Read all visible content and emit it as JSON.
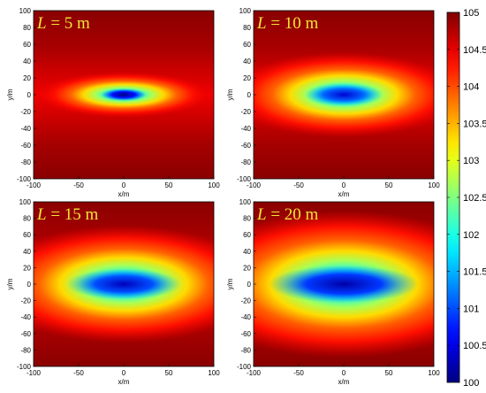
{
  "chart_data": {
    "type": "heatmap",
    "panels": [
      {
        "title_var": "L",
        "title_value": "= 5 m",
        "xlabel": "x/m",
        "ylabel": "y/m",
        "min_value": 100.3,
        "halo_rx": 100,
        "halo_ry": 26,
        "core_rx": 26,
        "core_ry": 7
      },
      {
        "title_var": "L",
        "title_value": "= 10 m",
        "xlabel": "x/m",
        "ylabel": "y/m",
        "min_value": 100.7,
        "halo_rx": 135,
        "halo_ry": 48,
        "core_rx": 45,
        "core_ry": 13
      },
      {
        "title_var": "L",
        "title_value": "= 15 m",
        "xlabel": "x/m",
        "ylabel": "y/m",
        "min_value": 100.6,
        "halo_rx": 160,
        "halo_ry": 68,
        "core_rx": 65,
        "core_ry": 18
      },
      {
        "title_var": "L",
        "title_value": "= 20 m",
        "xlabel": "x/m",
        "ylabel": "y/m",
        "min_value": 100.5,
        "halo_rx": 185,
        "halo_ry": 85,
        "core_rx": 85,
        "core_ry": 22
      }
    ],
    "xlim": [
      -100,
      100
    ],
    "ylim": [
      -100,
      100
    ],
    "x_ticks": [
      -100,
      -50,
      0,
      50,
      100
    ],
    "y_ticks": [
      100,
      80,
      60,
      40,
      20,
      0,
      -20,
      -40,
      -60,
      -80,
      -100
    ],
    "colorbar": {
      "range": [
        100,
        105
      ],
      "ticks": [
        105,
        104.5,
        104,
        103.5,
        103,
        102.5,
        102,
        101.5,
        101,
        100.5,
        100
      ],
      "colormap": "jet"
    }
  }
}
